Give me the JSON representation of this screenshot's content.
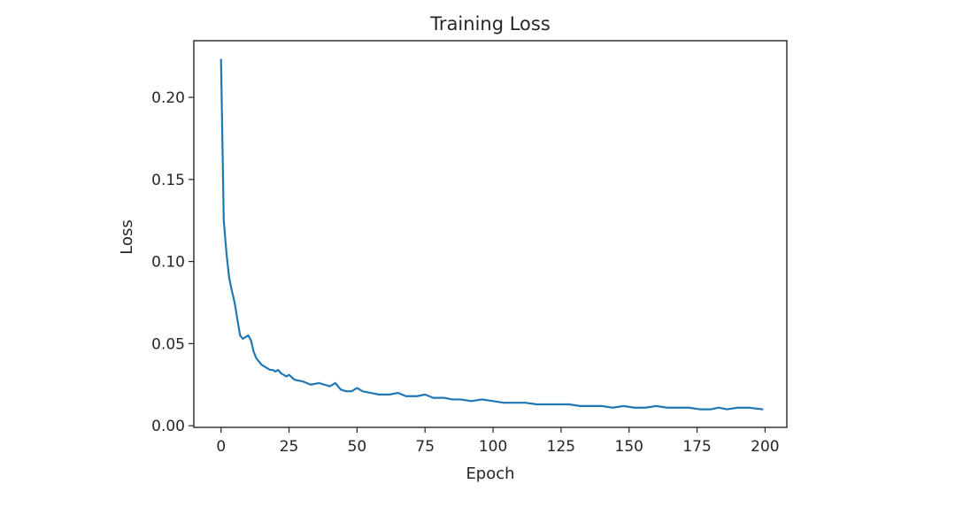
{
  "chart_data": {
    "type": "line",
    "title": "Training Loss",
    "xlabel": "Epoch",
    "ylabel": "Loss",
    "xlim": [
      -10,
      208
    ],
    "ylim": [
      -0.001,
      0.2345
    ],
    "xticks": [
      0,
      25,
      50,
      75,
      100,
      125,
      150,
      175,
      200
    ],
    "xtick_labels": [
      "0",
      "25",
      "50",
      "75",
      "100",
      "125",
      "150",
      "175",
      "200"
    ],
    "yticks": [
      0.0,
      0.05,
      0.1,
      0.15,
      0.2
    ],
    "ytick_labels": [
      "0.00",
      "0.05",
      "0.10",
      "0.15",
      "0.20"
    ],
    "grid": false,
    "legend": "none",
    "series": [
      {
        "color": "#1f77b4",
        "x": [
          0,
          1,
          2,
          3,
          4,
          5,
          6,
          7,
          8,
          9,
          10,
          11,
          12,
          13,
          14,
          15,
          16,
          17,
          18,
          19,
          20,
          21,
          22,
          23,
          24,
          25,
          27,
          30,
          33,
          36,
          38,
          40,
          42,
          44,
          46,
          48,
          50,
          52,
          55,
          58,
          62,
          65,
          68,
          72,
          75,
          78,
          82,
          85,
          88,
          92,
          96,
          100,
          104,
          108,
          112,
          116,
          120,
          124,
          128,
          132,
          136,
          140,
          144,
          148,
          152,
          156,
          160,
          164,
          168,
          172,
          176,
          180,
          183,
          186,
          190,
          194,
          199
        ],
        "values": [
          0.223,
          0.125,
          0.105,
          0.09,
          0.082,
          0.075,
          0.065,
          0.055,
          0.053,
          0.054,
          0.055,
          0.052,
          0.045,
          0.041,
          0.039,
          0.037,
          0.036,
          0.035,
          0.034,
          0.034,
          0.033,
          0.034,
          0.032,
          0.031,
          0.03,
          0.031,
          0.028,
          0.027,
          0.025,
          0.026,
          0.025,
          0.024,
          0.026,
          0.022,
          0.021,
          0.021,
          0.023,
          0.021,
          0.02,
          0.019,
          0.019,
          0.02,
          0.018,
          0.018,
          0.019,
          0.017,
          0.017,
          0.016,
          0.016,
          0.015,
          0.016,
          0.015,
          0.014,
          0.014,
          0.014,
          0.013,
          0.013,
          0.013,
          0.013,
          0.012,
          0.012,
          0.012,
          0.011,
          0.012,
          0.011,
          0.011,
          0.012,
          0.011,
          0.011,
          0.011,
          0.01,
          0.01,
          0.011,
          0.01,
          0.011,
          0.011,
          0.01
        ]
      }
    ]
  }
}
